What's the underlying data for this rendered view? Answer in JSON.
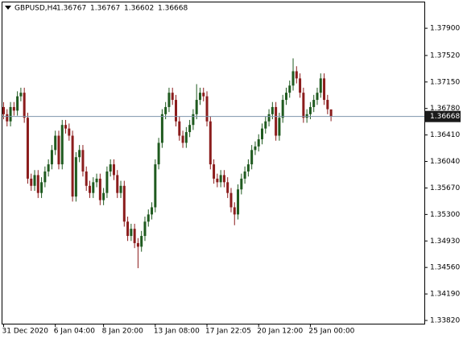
{
  "chart_data": {
    "type": "candlestick",
    "title": "GBPUSD,H4",
    "categories": [
      "31 Dec 2020",
      null,
      null,
      null,
      null,
      null,
      null,
      null,
      null,
      null,
      null,
      null,
      null,
      null,
      null,
      "6 Jan 04:00",
      null,
      null,
      null,
      null,
      null,
      null,
      null,
      null,
      null,
      null,
      null,
      null,
      null,
      "8 Jan 20:00",
      null,
      null,
      null,
      null,
      null,
      null,
      null,
      null,
      null,
      null,
      null,
      null,
      null,
      null,
      "13 Jan 08:00",
      null,
      null,
      null,
      null,
      null,
      null,
      null,
      null,
      null,
      null,
      null,
      null,
      null,
      null,
      "17 Jan 22:05",
      null,
      null,
      null,
      null,
      null,
      null,
      null,
      null,
      null,
      null,
      null,
      null,
      null,
      null,
      "20 Jan 12:00",
      null,
      null,
      null,
      null,
      null,
      null,
      null,
      null,
      null,
      null,
      null,
      null,
      null,
      null,
      "25 Jan 00:00",
      null,
      null,
      null,
      null,
      null,
      null
    ],
    "open": [
      1.368,
      1.367,
      1.366,
      1.368,
      1.3675,
      1.3695,
      1.37,
      1.3665,
      1.358,
      1.357,
      1.3585,
      1.356,
      1.3575,
      1.359,
      1.36,
      1.362,
      1.364,
      1.36,
      1.3655,
      1.365,
      1.364,
      1.3555,
      1.361,
      1.362,
      1.359,
      1.357,
      1.356,
      1.3575,
      1.358,
      1.355,
      1.356,
      1.359,
      1.36,
      1.3585,
      1.356,
      1.357,
      1.352,
      1.35,
      1.351,
      1.349,
      1.3485,
      1.35,
      1.352,
      1.353,
      1.354,
      1.36,
      1.363,
      1.367,
      1.368,
      1.37,
      1.369,
      1.366,
      1.364,
      1.363,
      1.3645,
      1.3655,
      1.367,
      1.369,
      1.37,
      1.3695,
      1.366,
      1.36,
      1.358,
      1.3575,
      1.3585,
      1.3575,
      1.356,
      1.354,
      1.353,
      1.3565,
      1.358,
      1.359,
      1.36,
      1.362,
      1.3625,
      1.3635,
      1.365,
      1.366,
      1.367,
      1.368,
      1.364,
      1.3665,
      1.369,
      1.37,
      1.371,
      1.373,
      1.372,
      1.37,
      1.3665,
      1.367,
      1.368,
      1.369,
      1.37,
      1.372,
      1.369,
      1.36767
    ],
    "high": [
      1.3687,
      1.3677,
      1.3687,
      1.3687,
      1.3702,
      1.3707,
      1.3707,
      1.3672,
      1.3587,
      1.3592,
      1.3592,
      1.3582,
      1.3597,
      1.3607,
      1.3627,
      1.3647,
      1.3647,
      1.3662,
      1.3662,
      1.3657,
      1.3647,
      1.3617,
      1.3627,
      1.3627,
      1.3597,
      1.3577,
      1.3582,
      1.3587,
      1.3587,
      1.3567,
      1.3597,
      1.3607,
      1.3607,
      1.3592,
      1.3577,
      1.3577,
      1.3527,
      1.3517,
      1.3517,
      1.3497,
      1.3507,
      1.3527,
      1.3537,
      1.3547,
      1.3607,
      1.3637,
      1.3677,
      1.3687,
      1.3707,
      1.3707,
      1.3697,
      1.3667,
      1.3647,
      1.3652,
      1.3662,
      1.3677,
      1.3712,
      1.3707,
      1.3707,
      1.3702,
      1.3667,
      1.3607,
      1.3587,
      1.3592,
      1.3592,
      1.3582,
      1.3567,
      1.3547,
      1.3572,
      1.3587,
      1.3597,
      1.3607,
      1.3627,
      1.3632,
      1.3642,
      1.3657,
      1.3667,
      1.3677,
      1.3687,
      1.3687,
      1.3672,
      1.3697,
      1.3707,
      1.3717,
      1.3748,
      1.3737,
      1.3727,
      1.3707,
      1.3677,
      1.3687,
      1.3697,
      1.3707,
      1.3727,
      1.3727,
      1.3697,
      1.36767
    ],
    "low": [
      1.3663,
      1.3653,
      1.3653,
      1.3668,
      1.3668,
      1.3688,
      1.3658,
      1.3573,
      1.3563,
      1.3563,
      1.3553,
      1.3553,
      1.3568,
      1.3583,
      1.3593,
      1.3613,
      1.3593,
      1.3593,
      1.3643,
      1.3633,
      1.3548,
      1.3548,
      1.3603,
      1.3583,
      1.3563,
      1.3553,
      1.3553,
      1.3568,
      1.3543,
      1.3543,
      1.3553,
      1.3583,
      1.3578,
      1.3553,
      1.3553,
      1.3513,
      1.3493,
      1.3493,
      1.3483,
      1.3455,
      1.3478,
      1.3493,
      1.3513,
      1.3523,
      1.3533,
      1.3593,
      1.3623,
      1.3663,
      1.3673,
      1.3683,
      1.3653,
      1.3633,
      1.3623,
      1.3623,
      1.3638,
      1.3648,
      1.3663,
      1.3683,
      1.3688,
      1.3653,
      1.3593,
      1.3573,
      1.3568,
      1.3568,
      1.3568,
      1.3553,
      1.3533,
      1.3515,
      1.3523,
      1.3558,
      1.3573,
      1.3583,
      1.3593,
      1.3613,
      1.3618,
      1.3628,
      1.3643,
      1.3653,
      1.3663,
      1.3633,
      1.3633,
      1.3658,
      1.3683,
      1.3693,
      1.3703,
      1.3713,
      1.3693,
      1.3658,
      1.3658,
      1.3663,
      1.3673,
      1.3683,
      1.3693,
      1.3683,
      1.367,
      1.36602
    ],
    "close": [
      1.367,
      1.366,
      1.368,
      1.3675,
      1.3695,
      1.37,
      1.3665,
      1.358,
      1.357,
      1.3585,
      1.356,
      1.3575,
      1.359,
      1.36,
      1.362,
      1.364,
      1.36,
      1.3655,
      1.365,
      1.364,
      1.3555,
      1.361,
      1.362,
      1.359,
      1.357,
      1.356,
      1.3575,
      1.358,
      1.355,
      1.356,
      1.359,
      1.36,
      1.3585,
      1.356,
      1.357,
      1.352,
      1.35,
      1.351,
      1.349,
      1.3485,
      1.35,
      1.352,
      1.353,
      1.354,
      1.36,
      1.363,
      1.367,
      1.368,
      1.37,
      1.369,
      1.366,
      1.364,
      1.363,
      1.3645,
      1.3655,
      1.367,
      1.369,
      1.37,
      1.3695,
      1.366,
      1.36,
      1.358,
      1.3575,
      1.3585,
      1.3575,
      1.356,
      1.354,
      1.353,
      1.3565,
      1.358,
      1.359,
      1.36,
      1.362,
      1.3625,
      1.3635,
      1.365,
      1.366,
      1.367,
      1.368,
      1.364,
      1.3665,
      1.369,
      1.37,
      1.371,
      1.373,
      1.372,
      1.37,
      1.3665,
      1.367,
      1.368,
      1.369,
      1.37,
      1.372,
      1.369,
      1.3677,
      1.36668
    ],
    "up_color": "#1f5a1f",
    "down_color": "#8b1c1c",
    "price_line_color": "#7d95ab",
    "ylim": [
      1.33775,
      1.38261
    ],
    "yticks": [
      {
        "value": 1.379,
        "label": "1.37900"
      },
      {
        "value": 1.3752,
        "label": "1.37520"
      },
      {
        "value": 1.3715,
        "label": "1.37150"
      },
      {
        "value": 1.3678,
        "label": "1.36780"
      },
      {
        "value": 1.3641,
        "label": "1.36410"
      },
      {
        "value": 1.3604,
        "label": "1.36040"
      },
      {
        "value": 1.3567,
        "label": "1.35670"
      },
      {
        "value": 1.353,
        "label": "1.35300"
      },
      {
        "value": 1.3493,
        "label": "1.34930"
      },
      {
        "value": 1.3456,
        "label": "1.34560"
      },
      {
        "value": 1.3419,
        "label": "1.34190"
      },
      {
        "value": 1.3382,
        "label": "1.33820"
      }
    ]
  }
}
